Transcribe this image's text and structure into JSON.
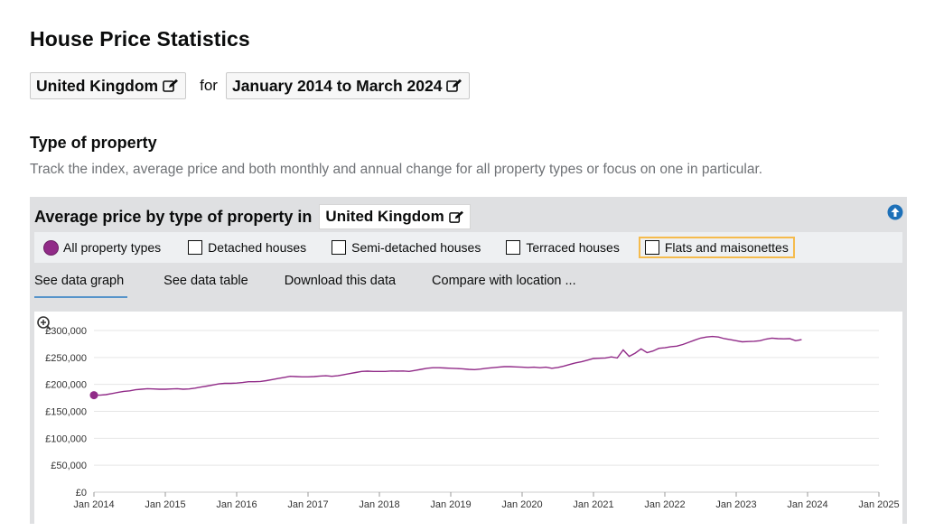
{
  "page": {
    "title": "House Price Statistics",
    "location": "United Kingdom",
    "for_label": "for",
    "period": "January 2014 to March 2024"
  },
  "section": {
    "title": "Type of property",
    "description": "Track the index, average price and both monthly and annual change for all property types or focus on one in particular."
  },
  "panel": {
    "title": "Average price by type of property in",
    "location": "United Kingdom",
    "filters": [
      {
        "label": "All property types",
        "selected": true
      },
      {
        "label": "Detached houses",
        "selected": false
      },
      {
        "label": "Semi-detached houses",
        "selected": false
      },
      {
        "label": "Terraced houses",
        "selected": false
      },
      {
        "label": "Flats and maisonettes",
        "selected": false
      }
    ],
    "tabs": [
      {
        "label": "See data graph",
        "active": true
      },
      {
        "label": "See data table",
        "active": false
      },
      {
        "label": "Download this data",
        "active": false
      },
      {
        "label": "Compare with location ...",
        "active": false
      }
    ]
  },
  "colors": {
    "series": "#912b88",
    "tab_underline": "#5694ca",
    "focus": "#f5bb4d"
  },
  "icons": {
    "edit": "edit-icon",
    "up": "arrow-up-circle-icon",
    "zoom": "zoom-in-icon"
  },
  "chart_data": {
    "type": "line",
    "title": "",
    "xlabel": "",
    "ylabel": "",
    "x_ticks": [
      "Jan 2014",
      "Jan 2015",
      "Jan 2016",
      "Jan 2017",
      "Jan 2018",
      "Jan 2019",
      "Jan 2020",
      "Jan 2021",
      "Jan 2022",
      "Jan 2023",
      "Jan 2024",
      "Jan 2025"
    ],
    "y_ticks": [
      "£0",
      "£50,000",
      "£100,000",
      "£150,000",
      "£200,000",
      "£250,000",
      "£300,000"
    ],
    "ylim": [
      0,
      300000
    ],
    "xlim": [
      "2014-01",
      "2025-01"
    ],
    "grid": true,
    "series": [
      {
        "points": [
          [
            "2014-01",
            180000
          ],
          [
            "2014-02",
            180000
          ],
          [
            "2014-03",
            181000
          ],
          [
            "2014-04",
            183000
          ],
          [
            "2014-05",
            185000
          ],
          [
            "2014-06",
            187000
          ],
          [
            "2014-07",
            188000
          ],
          [
            "2014-08",
            190000
          ],
          [
            "2014-09",
            191000
          ],
          [
            "2014-10",
            192000
          ],
          [
            "2014-11",
            191500
          ],
          [
            "2014-12",
            191000
          ],
          [
            "2015-01",
            191000
          ],
          [
            "2015-02",
            191500
          ],
          [
            "2015-03",
            192000
          ],
          [
            "2015-04",
            191000
          ],
          [
            "2015-05",
            191500
          ],
          [
            "2015-06",
            193000
          ],
          [
            "2015-07",
            195000
          ],
          [
            "2015-08",
            197000
          ],
          [
            "2015-09",
            199000
          ],
          [
            "2015-10",
            201000
          ],
          [
            "2015-11",
            202000
          ],
          [
            "2015-12",
            202000
          ],
          [
            "2016-01",
            202500
          ],
          [
            "2016-02",
            203500
          ],
          [
            "2016-03",
            205000
          ],
          [
            "2016-04",
            205000
          ],
          [
            "2016-05",
            205500
          ],
          [
            "2016-06",
            207000
          ],
          [
            "2016-07",
            209000
          ],
          [
            "2016-08",
            211000
          ],
          [
            "2016-09",
            213000
          ],
          [
            "2016-10",
            215000
          ],
          [
            "2016-11",
            214500
          ],
          [
            "2016-12",
            214000
          ],
          [
            "2017-01",
            214000
          ],
          [
            "2017-02",
            214500
          ],
          [
            "2017-03",
            215500
          ],
          [
            "2017-04",
            216000
          ],
          [
            "2017-05",
            215000
          ],
          [
            "2017-06",
            216000
          ],
          [
            "2017-07",
            218000
          ],
          [
            "2017-08",
            220000
          ],
          [
            "2017-09",
            222000
          ],
          [
            "2017-10",
            224000
          ],
          [
            "2017-11",
            224500
          ],
          [
            "2017-12",
            224000
          ],
          [
            "2018-01",
            224000
          ],
          [
            "2018-02",
            224000
          ],
          [
            "2018-03",
            225000
          ],
          [
            "2018-04",
            224500
          ],
          [
            "2018-05",
            225000
          ],
          [
            "2018-06",
            224000
          ],
          [
            "2018-07",
            226000
          ],
          [
            "2018-08",
            228000
          ],
          [
            "2018-09",
            230000
          ],
          [
            "2018-10",
            231000
          ],
          [
            "2018-11",
            231000
          ],
          [
            "2018-12",
            230500
          ],
          [
            "2019-01",
            230000
          ],
          [
            "2019-02",
            229500
          ],
          [
            "2019-03",
            229000
          ],
          [
            "2019-04",
            228000
          ],
          [
            "2019-05",
            227500
          ],
          [
            "2019-06",
            228500
          ],
          [
            "2019-07",
            230000
          ],
          [
            "2019-08",
            231000
          ],
          [
            "2019-09",
            232000
          ],
          [
            "2019-10",
            233000
          ],
          [
            "2019-11",
            233000
          ],
          [
            "2019-12",
            232500
          ],
          [
            "2020-01",
            232000
          ],
          [
            "2020-02",
            231500
          ],
          [
            "2020-03",
            232000
          ],
          [
            "2020-04",
            231000
          ],
          [
            "2020-05",
            232000
          ],
          [
            "2020-06",
            230000
          ],
          [
            "2020-07",
            231500
          ],
          [
            "2020-08",
            234000
          ],
          [
            "2020-09",
            237000
          ],
          [
            "2020-10",
            240000
          ],
          [
            "2020-11",
            242000
          ],
          [
            "2020-12",
            245000
          ],
          [
            "2021-01",
            248000
          ],
          [
            "2021-02",
            248500
          ],
          [
            "2021-03",
            249000
          ],
          [
            "2021-04",
            251000
          ],
          [
            "2021-05",
            249000
          ],
          [
            "2021-06",
            264000
          ],
          [
            "2021-07",
            252000
          ],
          [
            "2021-08",
            258000
          ],
          [
            "2021-09",
            266000
          ],
          [
            "2021-10",
            259000
          ],
          [
            "2021-11",
            262000
          ],
          [
            "2021-12",
            267000
          ],
          [
            "2022-01",
            268000
          ],
          [
            "2022-02",
            270000
          ],
          [
            "2022-03",
            271000
          ],
          [
            "2022-04",
            274000
          ],
          [
            "2022-05",
            278000
          ],
          [
            "2022-06",
            282000
          ],
          [
            "2022-07",
            286000
          ],
          [
            "2022-08",
            288000
          ],
          [
            "2022-09",
            289000
          ],
          [
            "2022-10",
            288000
          ],
          [
            "2022-11",
            285000
          ],
          [
            "2022-12",
            283000
          ],
          [
            "2023-01",
            281000
          ],
          [
            "2023-02",
            279000
          ],
          [
            "2023-03",
            279500
          ],
          [
            "2023-04",
            280000
          ],
          [
            "2023-05",
            281000
          ],
          [
            "2023-06",
            284000
          ],
          [
            "2023-07",
            286000
          ],
          [
            "2023-08",
            285000
          ],
          [
            "2023-09",
            284500
          ],
          [
            "2023-10",
            285000
          ],
          [
            "2023-11",
            281000
          ],
          [
            "2023-12",
            283000
          ]
        ]
      }
    ]
  }
}
